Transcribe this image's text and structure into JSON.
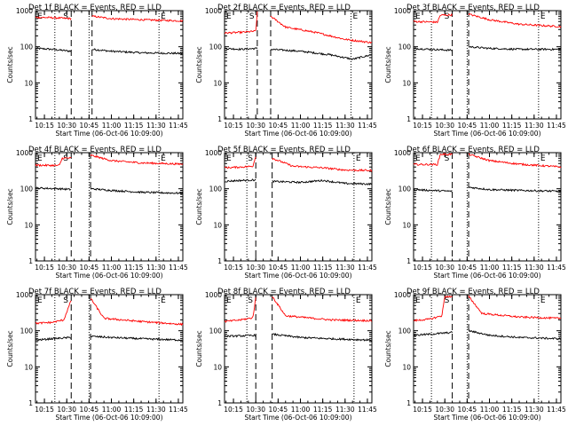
{
  "figure": {
    "xaxis_label": "Start Time (06-Oct-06 10:09:00)",
    "yaxis_label": "Counts/sec",
    "x_ticks": [
      "10:15",
      "10:30",
      "10:45",
      "11:00",
      "11:15",
      "11:30",
      "11:45"
    ],
    "y_ticks": [
      "1",
      "10",
      "100",
      "1000"
    ],
    "marker_labels": {
      "start": "E",
      "saa": "S",
      "end": "E"
    },
    "colors": {
      "events": "#000000",
      "lld": "#ff0000"
    }
  },
  "chart_data": [
    {
      "type": "line",
      "title": "Det 1f BLACK = Events, RED = LLD",
      "xlim": [
        "10:09",
        "11:48"
      ],
      "ylim": [
        1,
        1000
      ],
      "yscale": "log",
      "gap": [
        "10:33",
        "10:47"
      ],
      "vlines_dotted": [
        "10:22",
        "10:45",
        "11:32"
      ],
      "vlines_dashed": [
        "10:33",
        "10:47"
      ],
      "series": [
        {
          "color": "#000000",
          "pre": [
            [
              "10:09",
              90
            ],
            [
              "10:20",
              85
            ],
            [
              "10:33",
              75
            ]
          ],
          "post": [
            [
              "10:47",
              85
            ],
            [
              "11:00",
              75
            ],
            [
              "11:20",
              68
            ],
            [
              "11:48",
              65
            ]
          ]
        },
        {
          "color": "#ff0000",
          "pre": [
            [
              "10:09",
              650
            ],
            [
              "10:20",
              640
            ],
            [
              "10:33",
              600
            ]
          ],
          "post": [
            [
              "10:47",
              700
            ],
            [
              "11:00",
              600
            ],
            [
              "11:20",
              560
            ],
            [
              "11:48",
              520
            ]
          ]
        }
      ]
    },
    {
      "type": "line",
      "title": "Det 2f BLACK = Events, RED = LLD",
      "xlim": [
        "10:09",
        "11:48"
      ],
      "ylim": [
        1,
        1000
      ],
      "yscale": "log",
      "gap": [
        "10:31",
        "10:40"
      ],
      "vlines_dotted": [
        "10:24",
        "11:34"
      ],
      "vlines_dashed": [
        "10:31",
        "10:40"
      ],
      "series": [
        {
          "color": "#000000",
          "pre": [
            [
              "10:09",
              90
            ],
            [
              "10:20",
              85
            ],
            [
              "10:31",
              90
            ]
          ],
          "post": [
            [
              "10:40",
              85
            ],
            [
              "11:00",
              75
            ],
            [
              "11:20",
              60
            ],
            [
              "11:35",
              45
            ],
            [
              "11:48",
              60
            ]
          ]
        },
        {
          "color": "#ff0000",
          "pre": [
            [
              "10:09",
              240
            ],
            [
              "10:20",
              250
            ],
            [
              "10:30",
              270
            ],
            [
              "10:31",
              900
            ]
          ],
          "post": [
            [
              "10:40",
              700
            ],
            [
              "10:50",
              350
            ],
            [
              "11:10",
              250
            ],
            [
              "11:30",
              160
            ],
            [
              "11:48",
              130
            ]
          ]
        }
      ]
    },
    {
      "type": "line",
      "title": "Det 3f BLACK = Events, RED = LLD",
      "xlim": [
        "10:09",
        "11:48"
      ],
      "ylim": [
        1,
        1000
      ],
      "yscale": "log",
      "gap": [
        "10:35",
        "10:46"
      ],
      "vlines_dotted": [
        "10:21",
        "10:45",
        "11:33"
      ],
      "vlines_dashed": [
        "10:35",
        "10:46"
      ],
      "series": [
        {
          "color": "#000000",
          "pre": [
            [
              "10:09",
              90
            ],
            [
              "10:20",
              85
            ],
            [
              "10:35",
              80
            ]
          ],
          "post": [
            [
              "10:46",
              100
            ],
            [
              "11:00",
              90
            ],
            [
              "11:20",
              85
            ],
            [
              "11:48",
              85
            ]
          ]
        },
        {
          "color": "#ff0000",
          "pre": [
            [
              "10:09",
              500
            ],
            [
              "10:25",
              480
            ],
            [
              "10:27",
              750
            ],
            [
              "10:35",
              760
            ]
          ],
          "post": [
            [
              "10:46",
              800
            ],
            [
              "11:00",
              560
            ],
            [
              "11:20",
              420
            ],
            [
              "11:48",
              360
            ]
          ]
        }
      ]
    },
    {
      "type": "line",
      "title": "Det 4f BLACK = Events, RED = LLD",
      "xlim": [
        "10:09",
        "11:48"
      ],
      "ylim": [
        1,
        1000
      ],
      "yscale": "log",
      "gap": [
        "10:33",
        "10:46"
      ],
      "vlines_dotted": [
        "10:22",
        "10:45",
        "11:32"
      ],
      "vlines_dashed": [
        "10:33",
        "10:46"
      ],
      "series": [
        {
          "color": "#000000",
          "pre": [
            [
              "10:09",
              105
            ],
            [
              "10:25",
              100
            ],
            [
              "10:33",
              95
            ]
          ],
          "post": [
            [
              "10:46",
              100
            ],
            [
              "11:00",
              90
            ],
            [
              "11:20",
              80
            ],
            [
              "11:48",
              75
            ]
          ]
        },
        {
          "color": "#ff0000",
          "pre": [
            [
              "10:09",
              450
            ],
            [
              "10:25",
              440
            ],
            [
              "10:27",
              700
            ],
            [
              "10:33",
              710
            ]
          ],
          "post": [
            [
              "10:46",
              850
            ],
            [
              "11:00",
              600
            ],
            [
              "11:20",
              520
            ],
            [
              "11:48",
              480
            ]
          ]
        }
      ]
    },
    {
      "type": "line",
      "title": "Det 5f BLACK = Events, RED = LLD",
      "xlim": [
        "10:09",
        "11:48"
      ],
      "ylim": [
        1,
        1000
      ],
      "yscale": "log",
      "gap": [
        "10:30",
        "10:41"
      ],
      "vlines_dotted": [
        "10:24",
        "11:36"
      ],
      "vlines_dashed": [
        "10:30",
        "10:41"
      ],
      "series": [
        {
          "color": "#000000",
          "pre": [
            [
              "10:09",
              160
            ],
            [
              "10:20",
              170
            ],
            [
              "10:30",
              175
            ]
          ],
          "post": [
            [
              "10:41",
              160
            ],
            [
              "11:00",
              150
            ],
            [
              "11:15",
              170
            ],
            [
              "11:30",
              140
            ],
            [
              "11:48",
              135
            ]
          ]
        },
        {
          "color": "#ff0000",
          "pre": [
            [
              "10:09",
              380
            ],
            [
              "10:20",
              400
            ],
            [
              "10:28",
              420
            ],
            [
              "10:30",
              800
            ]
          ],
          "post": [
            [
              "10:41",
              700
            ],
            [
              "10:55",
              420
            ],
            [
              "11:15",
              380
            ],
            [
              "11:30",
              330
            ],
            [
              "11:48",
              320
            ]
          ]
        }
      ]
    },
    {
      "type": "line",
      "title": "Det 6f BLACK = Events, RED = LLD",
      "xlim": [
        "10:09",
        "11:48"
      ],
      "ylim": [
        1,
        1000
      ],
      "yscale": "log",
      "gap": [
        "10:35",
        "10:46"
      ],
      "vlines_dotted": [
        "10:21",
        "10:45",
        "11:33"
      ],
      "vlines_dashed": [
        "10:35",
        "10:46"
      ],
      "series": [
        {
          "color": "#000000",
          "pre": [
            [
              "10:09",
              95
            ],
            [
              "10:20",
              90
            ],
            [
              "10:35",
              85
            ]
          ],
          "post": [
            [
              "10:46",
              110
            ],
            [
              "11:00",
              95
            ],
            [
              "11:20",
              90
            ],
            [
              "11:48",
              85
            ]
          ]
        },
        {
          "color": "#ff0000",
          "pre": [
            [
              "10:09",
              470
            ],
            [
              "10:25",
              470
            ],
            [
              "10:27",
              900
            ],
            [
              "10:35",
              900
            ]
          ],
          "post": [
            [
              "10:46",
              900
            ],
            [
              "11:00",
              600
            ],
            [
              "11:20",
              480
            ],
            [
              "11:48",
              400
            ]
          ]
        }
      ]
    },
    {
      "type": "line",
      "title": "Det 7f BLACK = Events, RED = LLD",
      "xlim": [
        "10:09",
        "11:48"
      ],
      "ylim": [
        1,
        1000
      ],
      "yscale": "log",
      "gap": [
        "10:33",
        "10:46"
      ],
      "vlines_dotted": [
        "10:22",
        "10:45",
        "11:32"
      ],
      "vlines_dashed": [
        "10:33",
        "10:46"
      ],
      "series": [
        {
          "color": "#000000",
          "pre": [
            [
              "10:09",
              55
            ],
            [
              "10:20",
              60
            ],
            [
              "10:33",
              65
            ]
          ],
          "post": [
            [
              "10:46",
              70
            ],
            [
              "11:00",
              65
            ],
            [
              "11:20",
              60
            ],
            [
              "11:48",
              55
            ]
          ]
        },
        {
          "color": "#ff0000",
          "pre": [
            [
              "10:09",
              160
            ],
            [
              "10:20",
              170
            ],
            [
              "10:28",
              200
            ],
            [
              "10:33",
              700
            ]
          ],
          "post": [
            [
              "10:46",
              800
            ],
            [
              "10:55",
              220
            ],
            [
              "11:20",
              180
            ],
            [
              "11:48",
              150
            ]
          ]
        }
      ]
    },
    {
      "type": "line",
      "title": "Det 8f BLACK = Events, RED = LLD",
      "xlim": [
        "10:09",
        "11:48"
      ],
      "ylim": [
        1,
        1000
      ],
      "yscale": "log",
      "gap": [
        "10:30",
        "10:41"
      ],
      "vlines_dotted": [
        "10:24",
        "11:36"
      ],
      "vlines_dashed": [
        "10:30",
        "10:41"
      ],
      "series": [
        {
          "color": "#000000",
          "pre": [
            [
              "10:09",
              70
            ],
            [
              "10:20",
              72
            ],
            [
              "10:30",
              75
            ]
          ],
          "post": [
            [
              "10:41",
              80
            ],
            [
              "11:00",
              65
            ],
            [
              "11:20",
              60
            ],
            [
              "11:48",
              55
            ]
          ]
        },
        {
          "color": "#ff0000",
          "pre": [
            [
              "10:09",
              180
            ],
            [
              "10:20",
              200
            ],
            [
              "10:28",
              230
            ],
            [
              "10:30",
              800
            ]
          ],
          "post": [
            [
              "10:41",
              900
            ],
            [
              "10:50",
              260
            ],
            [
              "11:20",
              200
            ],
            [
              "11:48",
              190
            ]
          ]
        }
      ]
    },
    {
      "type": "line",
      "title": "Det 9f BLACK = Events, RED = LLD",
      "xlim": [
        "10:09",
        "11:48"
      ],
      "ylim": [
        1,
        1000
      ],
      "yscale": "log",
      "gap": [
        "10:35",
        "10:46"
      ],
      "vlines_dotted": [
        "10:21",
        "10:45",
        "11:33"
      ],
      "vlines_dashed": [
        "10:35",
        "10:46"
      ],
      "series": [
        {
          "color": "#000000",
          "pre": [
            [
              "10:09",
              75
            ],
            [
              "10:20",
              80
            ],
            [
              "10:35",
              90
            ]
          ],
          "post": [
            [
              "10:46",
              100
            ],
            [
              "11:00",
              75
            ],
            [
              "11:20",
              65
            ],
            [
              "11:48",
              60
            ]
          ]
        },
        {
          "color": "#ff0000",
          "pre": [
            [
              "10:09",
              190
            ],
            [
              "10:20",
              210
            ],
            [
              "10:28",
              260
            ],
            [
              "10:30",
              900
            ],
            [
              "10:35",
              850
            ]
          ],
          "post": [
            [
              "10:46",
              900
            ],
            [
              "10:55",
              300
            ],
            [
              "11:20",
              240
            ],
            [
              "11:48",
              220
            ]
          ]
        }
      ]
    }
  ]
}
